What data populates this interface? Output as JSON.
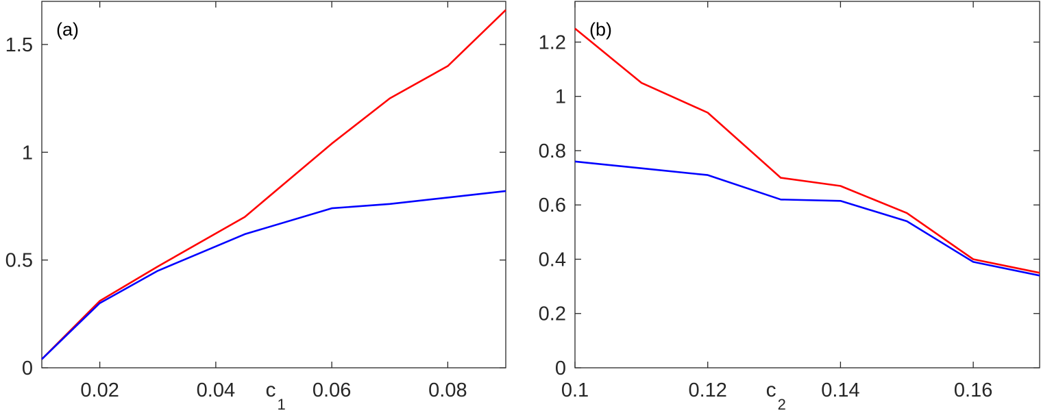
{
  "chart_data": [
    {
      "type": "line",
      "panel_label": "(a)",
      "xlabel": "c",
      "xlabel_subscript": "1",
      "ylabel": "",
      "xlim": [
        0.01,
        0.09
      ],
      "ylim": [
        0,
        1.7
      ],
      "xticks": [
        0.02,
        0.04,
        0.06,
        0.08
      ],
      "xtick_labels": [
        "0.02",
        "0.04",
        "0.06",
        "0.08"
      ],
      "yticks": [
        0,
        0.5,
        1,
        1.5
      ],
      "ytick_labels": [
        "0",
        "0.5",
        "1",
        "1.5"
      ],
      "grid": false,
      "series": [
        {
          "color": "#ff0000",
          "x": [
            0.01,
            0.02,
            0.03,
            0.045,
            0.06,
            0.07,
            0.08,
            0.09
          ],
          "y": [
            0.04,
            0.31,
            0.47,
            0.7,
            1.04,
            1.25,
            1.4,
            1.66
          ]
        },
        {
          "color": "#0000ff",
          "x": [
            0.01,
            0.02,
            0.03,
            0.045,
            0.06,
            0.07,
            0.08,
            0.09
          ],
          "y": [
            0.04,
            0.3,
            0.45,
            0.62,
            0.74,
            0.76,
            0.79,
            0.82
          ]
        }
      ]
    },
    {
      "type": "line",
      "panel_label": "(b)",
      "xlabel": "c",
      "xlabel_subscript": "2",
      "ylabel": "",
      "xlim": [
        0.1,
        0.17
      ],
      "ylim": [
        0,
        1.35
      ],
      "xticks": [
        0.1,
        0.12,
        0.14,
        0.16
      ],
      "xtick_labels": [
        "0.1",
        "0.12",
        "0.14",
        "0.16"
      ],
      "yticks": [
        0,
        0.2,
        0.4,
        0.6,
        0.8,
        1,
        1.2
      ],
      "ytick_labels": [
        "0",
        "0.2",
        "0.4",
        "0.6",
        "0.8",
        "1",
        "1.2"
      ],
      "grid": false,
      "series": [
        {
          "color": "#ff0000",
          "x": [
            0.1,
            0.11,
            0.12,
            0.131,
            0.14,
            0.15,
            0.16,
            0.17
          ],
          "y": [
            1.25,
            1.05,
            0.94,
            0.7,
            0.67,
            0.57,
            0.4,
            0.35
          ]
        },
        {
          "color": "#0000ff",
          "x": [
            0.1,
            0.11,
            0.12,
            0.131,
            0.14,
            0.15,
            0.16,
            0.17
          ],
          "y": [
            0.76,
            0.735,
            0.71,
            0.62,
            0.615,
            0.54,
            0.39,
            0.34
          ]
        }
      ]
    }
  ]
}
